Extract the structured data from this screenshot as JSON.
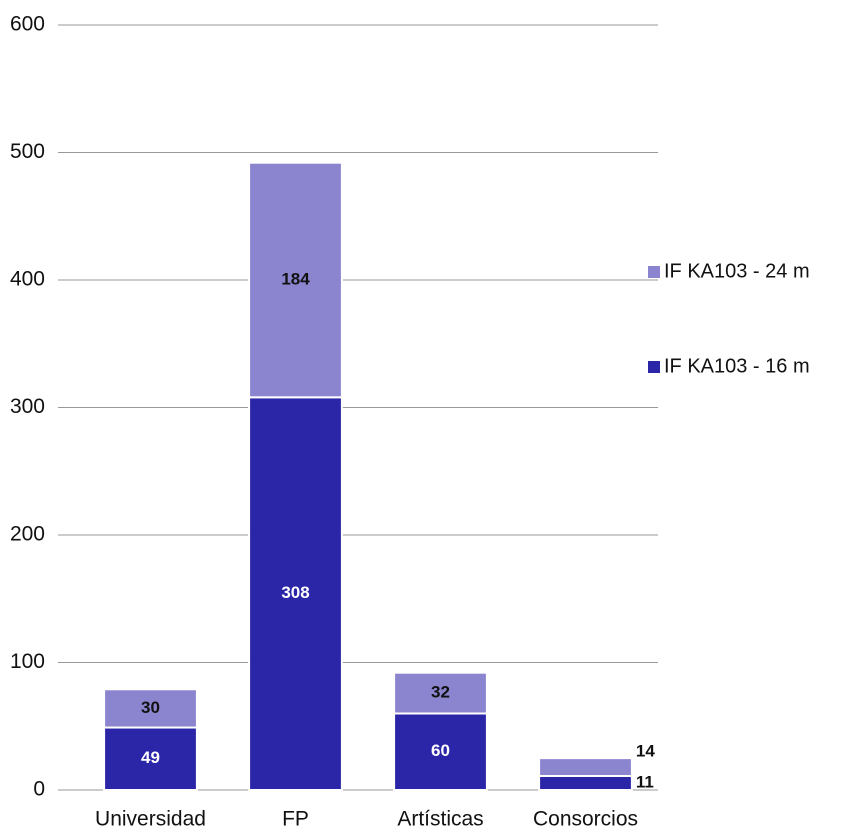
{
  "chart_data": {
    "type": "stacked_bar",
    "categories": [
      "Universidad",
      "FP",
      "Artísticas",
      "Consorcios"
    ],
    "series": [
      {
        "name": "IF KA103 - 16 m",
        "color": "#2b25a8",
        "values": [
          49,
          308,
          60,
          11
        ]
      },
      {
        "name": "IF KA103 - 24 m",
        "color": "#8b85d0",
        "values": [
          30,
          184,
          32,
          14
        ]
      }
    ],
    "ylim": [
      0,
      600
    ],
    "yticks": [
      0,
      100,
      200,
      300,
      400,
      500,
      600
    ],
    "grid": true,
    "legend": "right"
  }
}
